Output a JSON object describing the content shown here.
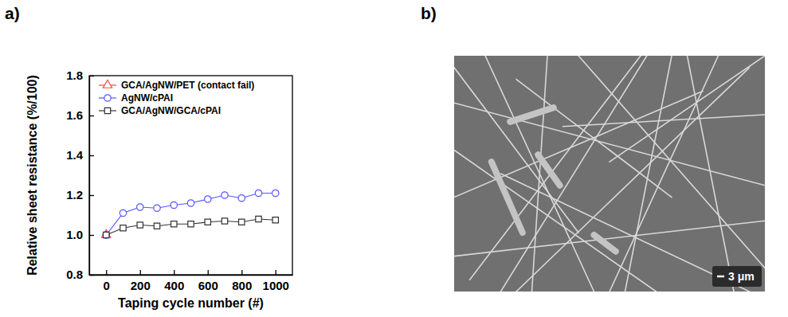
{
  "chart_data": {
    "type": "line",
    "panel_label": "a)",
    "x_label": "Taping cycle number (#)",
    "y_label": "Relative sheet resistance (%/100)",
    "xlim": [
      -100,
      1100
    ],
    "xticks": [
      0,
      200,
      400,
      600,
      800,
      1000
    ],
    "ylim": [
      0.8,
      1.8
    ],
    "yticks": [
      0.8,
      {
        "value": 1.0,
        "label": "1.0"
      },
      1.2,
      1.4,
      1.6,
      1.8
    ],
    "grid": false,
    "legend": "upper left",
    "series": [
      {
        "name": "GCA/AgNW/PET (contact fail)",
        "color": "#ff4444",
        "marker": "triangle",
        "line_style": "solid",
        "x": [
          0
        ],
        "values": [
          1.0
        ]
      },
      {
        "name": "AgNW/cPAI",
        "color": "#5555ff",
        "marker": "circle",
        "line_style": "solid",
        "x": [
          0,
          100,
          200,
          300,
          400,
          500,
          600,
          700,
          800,
          900,
          1000
        ],
        "values": [
          1.0,
          1.11,
          1.14,
          1.135,
          1.15,
          1.16,
          1.18,
          1.2,
          1.185,
          1.21,
          1.21
        ]
      },
      {
        "name": "GCA/AgNW/GCA/cPAI",
        "color": "#333333",
        "marker": "square",
        "line_style": "solid",
        "x": [
          0,
          100,
          200,
          300,
          400,
          500,
          600,
          700,
          800,
          900,
          1000
        ],
        "values": [
          1.0,
          1.035,
          1.05,
          1.045,
          1.055,
          1.055,
          1.065,
          1.07,
          1.065,
          1.08,
          1.075
        ]
      }
    ]
  },
  "image": {
    "panel_label": "b)",
    "scale_bar": "3 μm"
  }
}
